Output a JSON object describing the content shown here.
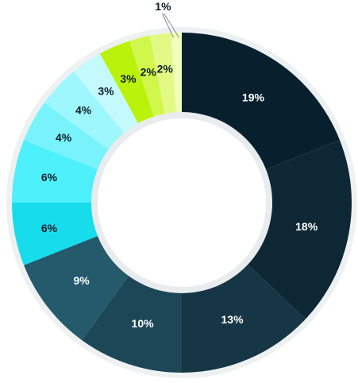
{
  "chart_data": {
    "type": "pie",
    "donut": true,
    "start": "top, clockwise",
    "legend": "none",
    "slices": [
      {
        "label": "19%",
        "value": 19,
        "color": "#08202e",
        "text_color": "#ffffff"
      },
      {
        "label": "18%",
        "value": 18,
        "color": "#0e2735",
        "text_color": "#ffffff"
      },
      {
        "label": "13%",
        "value": 13,
        "color": "#163545",
        "text_color": "#ffffff"
      },
      {
        "label": "10%",
        "value": 10,
        "color": "#1d4657",
        "text_color": "#ffffff"
      },
      {
        "label": "9%",
        "value": 9,
        "color": "#245a6b",
        "text_color": "#ffffff"
      },
      {
        "label": "6%",
        "value": 6,
        "color": "#16dcec",
        "text_color": "#0c1e29"
      },
      {
        "label": "6%",
        "value": 6,
        "color": "#4ef0fb",
        "text_color": "#0c1e29"
      },
      {
        "label": "4%",
        "value": 4,
        "color": "#78f3fc",
        "text_color": "#0c1e29"
      },
      {
        "label": "4%",
        "value": 4,
        "color": "#9ef7fd",
        "text_color": "#0c1e29"
      },
      {
        "label": "3%",
        "value": 3,
        "color": "#c4fafe",
        "text_color": "#0c1e29"
      },
      {
        "label": "3%",
        "value": 3,
        "color": "#baf20c",
        "text_color": "#0c1e29"
      },
      {
        "label": "2%",
        "value": 2,
        "color": "#d1f74d",
        "text_color": "#0c1e29"
      },
      {
        "label": "2%",
        "value": 2,
        "color": "#e2fa85",
        "text_color": "#0c1e29"
      },
      {
        "label": "1%",
        "value": 1,
        "color": "#f0fcbb",
        "text_color": "#0c1e29"
      }
    ]
  }
}
